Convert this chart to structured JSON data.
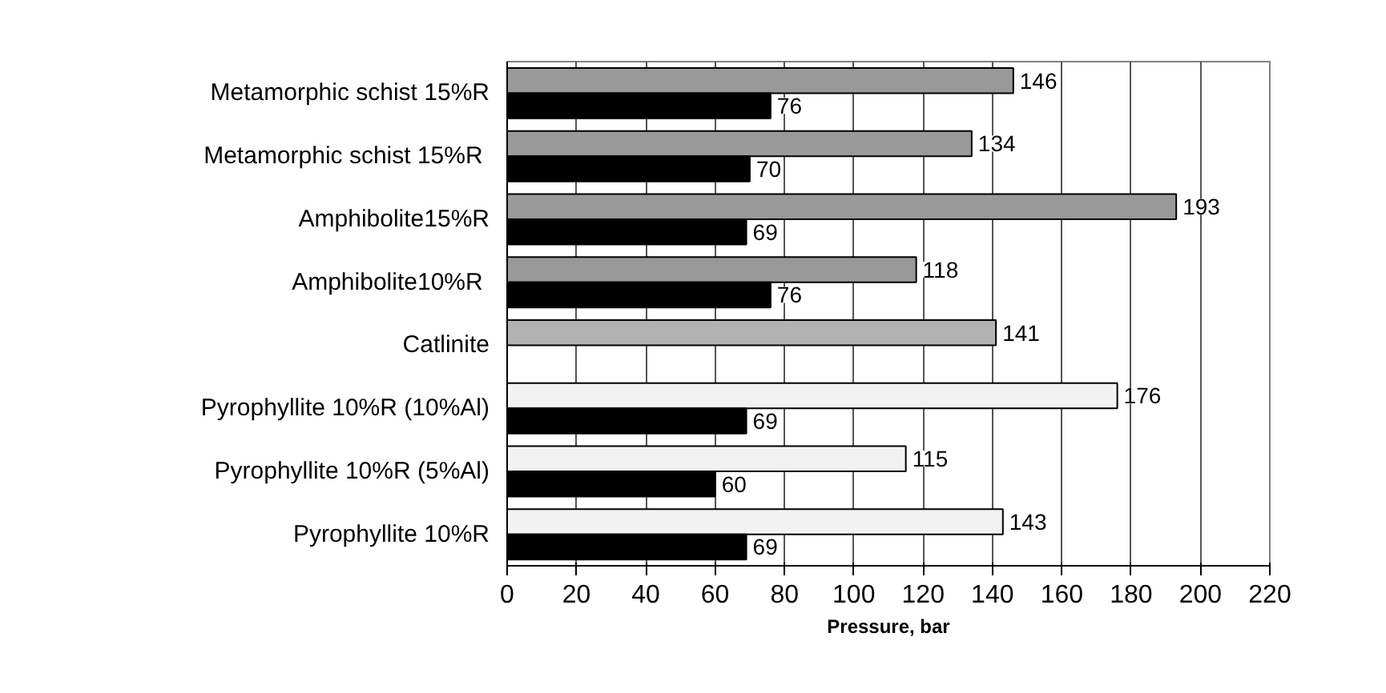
{
  "chart_data": {
    "type": "bar",
    "orientation": "horizontal",
    "xlabel": "Pressure, bar",
    "categories": [
      "Metamorphic schist 15%R",
      "Metamorphic schist 15%R ",
      "Amphibolite15%R",
      "Amphibolite10%R ",
      "Catlinite",
      "Pyrophyllite 10%R (10%Al)",
      "Pyrophyllite 10%R (5%Al)",
      "Pyrophyllite 10%R"
    ],
    "series": [
      {
        "colors": [
          "#999999",
          "#999999",
          "#999999",
          "#999999",
          "#b2b2b2",
          "#f2f2f2",
          "#f2f2f2",
          "#f2f2f2"
        ],
        "values": [
          146,
          134,
          193,
          118,
          141,
          176,
          115,
          143
        ]
      },
      {
        "color": "#000000",
        "values": [
          76,
          70,
          69,
          76,
          null,
          69,
          60,
          69
        ]
      }
    ],
    "xlim": [
      0,
      220
    ],
    "xticks": [
      0,
      20,
      40,
      60,
      80,
      100,
      120,
      140,
      160,
      180,
      200,
      220
    ],
    "grid": "x",
    "data_labels": true
  }
}
